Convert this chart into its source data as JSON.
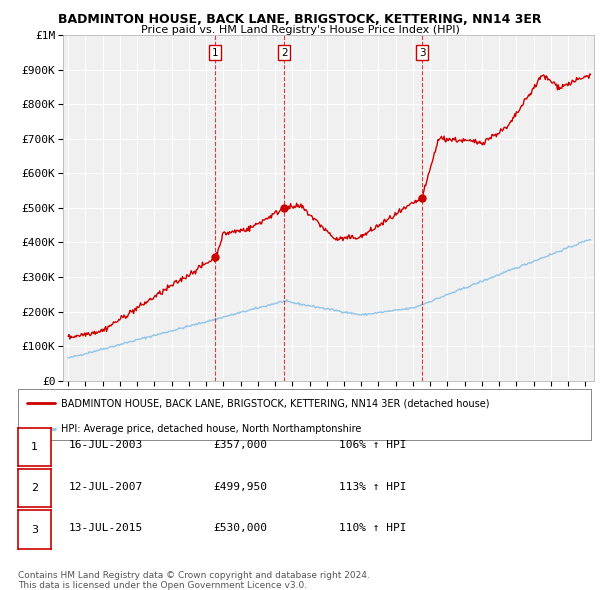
{
  "title": "BADMINTON HOUSE, BACK LANE, BRIGSTOCK, KETTERING, NN14 3ER",
  "subtitle": "Price paid vs. HM Land Registry's House Price Index (HPI)",
  "hpi_color": "#92c5e8",
  "price_color": "#cc0000",
  "sale_dates": [
    2003.54,
    2007.54,
    2015.54
  ],
  "sale_prices": [
    357000,
    499950,
    530000
  ],
  "sale_labels": [
    "1",
    "2",
    "3"
  ],
  "sale_date_strs": [
    "16-JUL-2003",
    "12-JUL-2007",
    "13-JUL-2015"
  ],
  "sale_price_strs": [
    "£357,000",
    "£499,950",
    "£530,000"
  ],
  "sale_hpi_strs": [
    "106% ↑ HPI",
    "113% ↑ HPI",
    "110% ↑ HPI"
  ],
  "ylim": [
    0,
    1000000
  ],
  "yticks": [
    0,
    100000,
    200000,
    300000,
    400000,
    500000,
    600000,
    700000,
    800000,
    900000,
    1000000
  ],
  "ytick_labels": [
    "£0",
    "£100K",
    "£200K",
    "£300K",
    "£400K",
    "£500K",
    "£600K",
    "£700K",
    "£800K",
    "£900K",
    "£1M"
  ],
  "xlim_start": 1994.7,
  "xlim_end": 2025.5,
  "background_color": "#ffffff",
  "plot_bg_color": "#f0f0f0",
  "grid_color": "#ffffff",
  "legend_label_red": "BADMINTON HOUSE, BACK LANE, BRIGSTOCK, KETTERING, NN14 3ER (detached house)",
  "legend_label_blue": "HPI: Average price, detached house, North Northamptonshire",
  "footer_line1": "Contains HM Land Registry data © Crown copyright and database right 2024.",
  "footer_line2": "This data is licensed under the Open Government Licence v3.0."
}
